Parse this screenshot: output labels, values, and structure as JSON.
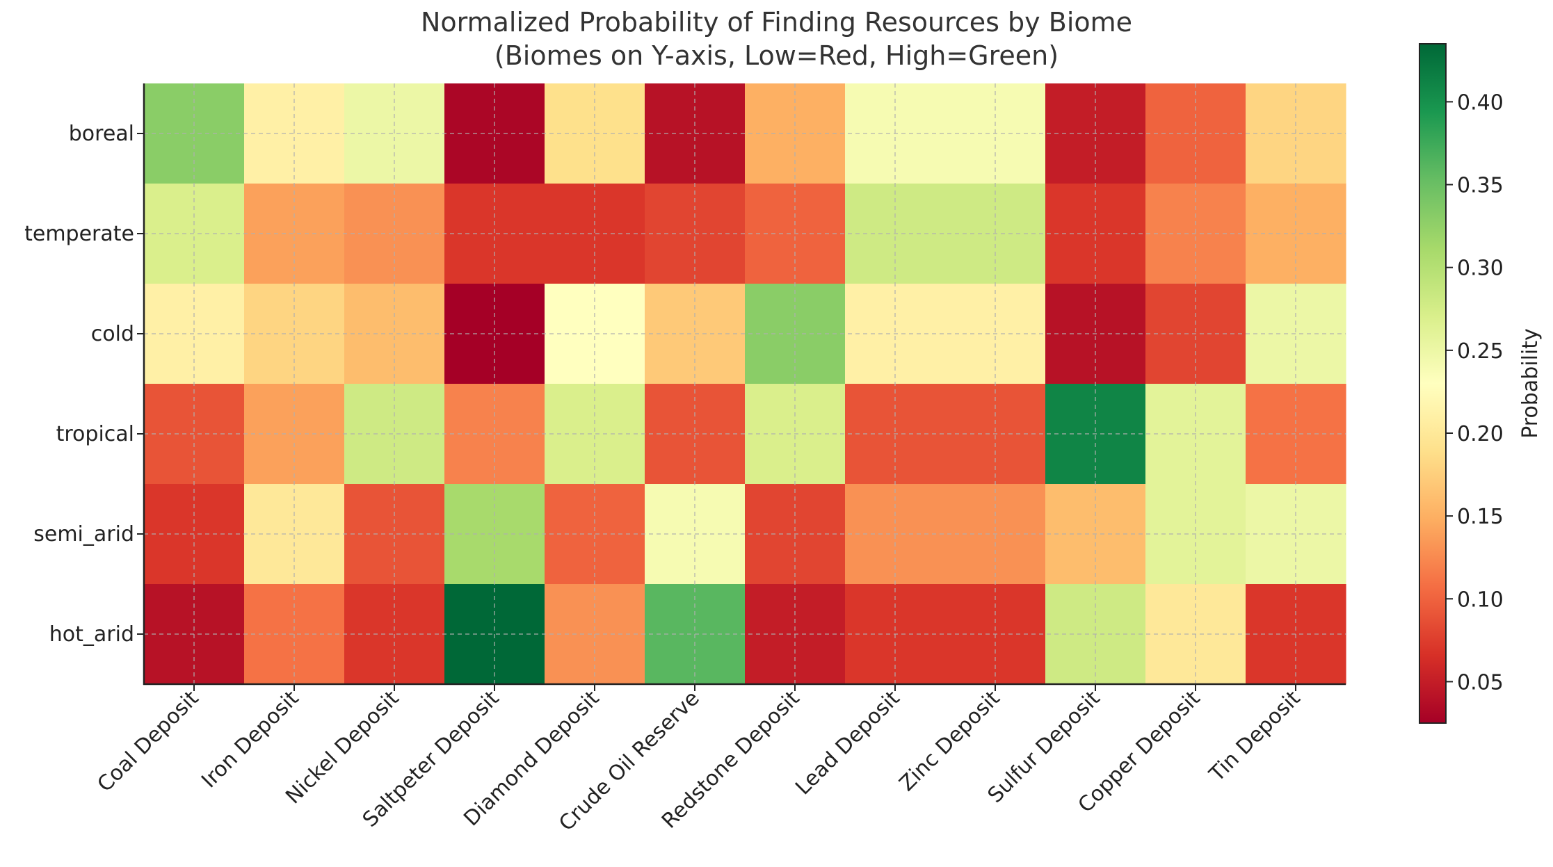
{
  "chart_data": {
    "type": "heatmap",
    "title": "Normalized Probability of Finding Resources by Biome",
    "subtitle": "(Biomes on Y-axis, Low=Red, High=Green)",
    "x_categories": [
      "Coal Deposit",
      "Iron Deposit",
      "Nickel Deposit",
      "Saltpeter Deposit",
      "Diamond Deposit",
      "Crude Oil Reserve",
      "Redstone Deposit",
      "Lead Deposit",
      "Zinc Deposit",
      "Sulfur Deposit",
      "Copper Deposit",
      "Tin Deposit"
    ],
    "y_categories": [
      "boreal",
      "temperate",
      "cold",
      "tropical",
      "semi_arid",
      "hot_arid"
    ],
    "values": [
      [
        0.33,
        0.21,
        0.25,
        0.03,
        0.19,
        0.04,
        0.15,
        0.24,
        0.24,
        0.05,
        0.1,
        0.18
      ],
      [
        0.27,
        0.14,
        0.13,
        0.07,
        0.07,
        0.08,
        0.1,
        0.28,
        0.28,
        0.07,
        0.12,
        0.15
      ],
      [
        0.21,
        0.18,
        0.16,
        0.025,
        0.23,
        0.17,
        0.33,
        0.21,
        0.21,
        0.04,
        0.08,
        0.25
      ],
      [
        0.09,
        0.14,
        0.28,
        0.12,
        0.27,
        0.09,
        0.27,
        0.09,
        0.09,
        0.41,
        0.26,
        0.11
      ],
      [
        0.07,
        0.2,
        0.09,
        0.31,
        0.1,
        0.24,
        0.08,
        0.13,
        0.13,
        0.16,
        0.26,
        0.25
      ],
      [
        0.04,
        0.11,
        0.07,
        0.435,
        0.13,
        0.36,
        0.05,
        0.07,
        0.07,
        0.28,
        0.2,
        0.07
      ]
    ],
    "colorbar": {
      "label": "Probability",
      "min": 0.025,
      "max": 0.435,
      "ticks": [
        "0.05",
        "0.10",
        "0.15",
        "0.20",
        "0.25",
        "0.30",
        "0.35",
        "0.40"
      ],
      "colormap": "RdYlGn",
      "low_color": "#a50026",
      "mid_color": "#ffffbf",
      "high_color": "#006837"
    },
    "grid": true
  }
}
